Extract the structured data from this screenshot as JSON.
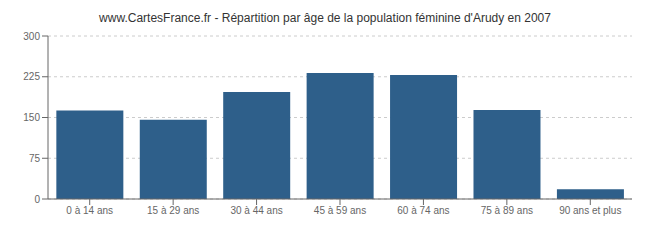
{
  "chart_data": {
    "type": "bar",
    "title": "www.CartesFrance.fr - Répartition par âge de la population féminine d'Arudy en 2007",
    "categories": [
      "0 à 14 ans",
      "15 à 29 ans",
      "30 à 44 ans",
      "45 à 59 ans",
      "60 à 74 ans",
      "75 à 89 ans",
      "90 ans et plus"
    ],
    "values": [
      163,
      146,
      197,
      232,
      228,
      164,
      18
    ],
    "color": "#2e5f8a",
    "ylim": [
      0,
      300
    ],
    "yticks": [
      0,
      75,
      150,
      225,
      300
    ],
    "grid": true
  }
}
